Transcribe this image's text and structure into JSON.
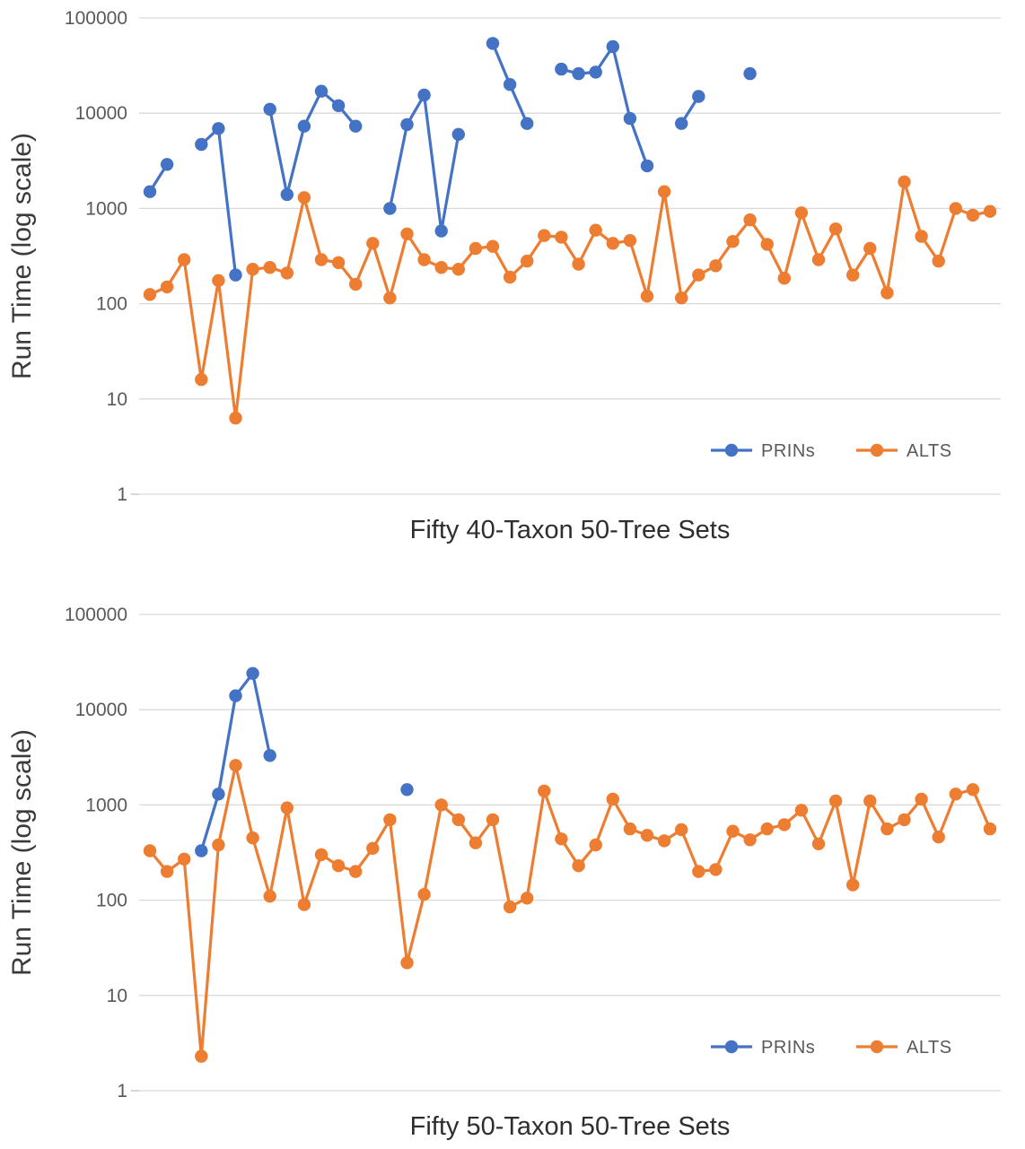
{
  "colors": {
    "prins": "#4472C4",
    "alts": "#ED7D31",
    "gridline": "#D9D9D9",
    "axis_line": "#BFBFBF",
    "tick_text": "#595959",
    "title_text": "#2e2e2e"
  },
  "chart_data": [
    {
      "type": "line",
      "title": "",
      "xlabel": "Fifty 40-Taxon 50-Tree Sets",
      "ylabel": "Run Time (log scale)",
      "yscale": "log",
      "ylim": [
        1,
        100000
      ],
      "yticks": [
        1,
        10,
        100,
        1000,
        10000,
        100000
      ],
      "grid": true,
      "legend_position": "bottom-right-inside",
      "x_points": 50,
      "series": [
        {
          "name": "PRINs",
          "color": "#4472C4",
          "values": [
            1500,
            2900,
            null,
            4700,
            6900,
            200,
            null,
            11000,
            1400,
            7300,
            17000,
            12000,
            7300,
            null,
            1000,
            7600,
            15500,
            580,
            6000,
            null,
            54000,
            20000,
            7800,
            null,
            29000,
            26000,
            27000,
            50000,
            8800,
            2800,
            null,
            7800,
            15000,
            null,
            null,
            26000,
            null,
            null,
            null,
            null,
            null,
            null,
            null,
            null,
            null,
            null,
            null,
            null,
            null,
            null
          ]
        },
        {
          "name": "ALTS",
          "color": "#ED7D31",
          "values": [
            125,
            150,
            290,
            16,
            175,
            6.3,
            230,
            240,
            210,
            1300,
            290,
            270,
            160,
            430,
            115,
            540,
            290,
            240,
            230,
            380,
            400,
            190,
            280,
            520,
            500,
            260,
            590,
            430,
            460,
            120,
            1500,
            115,
            200,
            250,
            450,
            760,
            420,
            185,
            900,
            290,
            610,
            200,
            380,
            130,
            1900,
            510,
            280,
            1000,
            850,
            930
          ]
        }
      ]
    },
    {
      "type": "line",
      "title": "",
      "xlabel": "Fifty 50-Taxon 50-Tree Sets",
      "ylabel": "Run Time (log scale)",
      "yscale": "log",
      "ylim": [
        1,
        100000
      ],
      "yticks": [
        1,
        10,
        100,
        1000,
        10000,
        100000
      ],
      "grid": true,
      "legend_position": "bottom-right-inside",
      "x_points": 50,
      "series": [
        {
          "name": "PRINs",
          "color": "#4472C4",
          "values": [
            null,
            null,
            null,
            330,
            1300,
            14000,
            24000,
            3300,
            null,
            null,
            null,
            null,
            null,
            null,
            null,
            1450,
            null,
            null,
            null,
            null,
            null,
            null,
            null,
            null,
            null,
            null,
            null,
            null,
            null,
            null,
            null,
            null,
            null,
            null,
            null,
            null,
            null,
            null,
            null,
            null,
            null,
            null,
            null,
            null,
            null,
            null,
            null,
            null,
            null,
            null
          ]
        },
        {
          "name": "ALTS",
          "color": "#ED7D31",
          "values": [
            330,
            200,
            270,
            2.3,
            380,
            2600,
            450,
            110,
            930,
            90,
            300,
            230,
            200,
            350,
            700,
            22,
            115,
            1000,
            700,
            400,
            700,
            85,
            105,
            1400,
            440,
            230,
            380,
            1150,
            560,
            480,
            420,
            550,
            200,
            210,
            530,
            430,
            560,
            620,
            880,
            390,
            1100,
            145,
            1100,
            560,
            700,
            1150,
            460,
            1300,
            1450,
            560
          ]
        }
      ]
    }
  ]
}
